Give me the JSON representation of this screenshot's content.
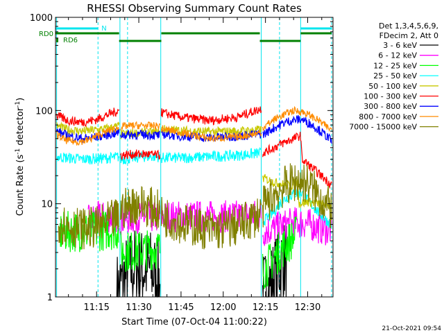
{
  "chart_data": {
    "type": "line",
    "title": "RHESSI Observing Summary Count Rates",
    "xlabel": "Start Time (07-Oct-04 11:00:22)",
    "ylabel_main": "Count Rate (s",
    "ylabel_sup1": "-1",
    "ylabel_mid": " detector",
    "ylabel_sup2": "-1",
    "ylabel_end": ")",
    "y_scale": "log",
    "ylim": [
      1,
      1000
    ],
    "xlim_minutes": [
      0.4,
      99
    ],
    "x_tick_labels": [
      {
        "t": 15,
        "label": "11:15"
      },
      {
        "t": 30,
        "label": "11:30"
      },
      {
        "t": 45,
        "label": "11:45"
      },
      {
        "t": 60,
        "label": "12:00"
      },
      {
        "t": 75,
        "label": "12:15"
      },
      {
        "t": 90,
        "label": "12:30"
      }
    ],
    "y_tick_labels": [
      {
        "v": 1,
        "label": "1"
      },
      {
        "v": 10,
        "label": "10"
      },
      {
        "v": 100,
        "label": "100"
      },
      {
        "v": 1000,
        "label": "1000"
      }
    ],
    "legend_header": [
      "Det 1,3,4,5,6,9,",
      "FDecim 2, Att 0"
    ],
    "legend_placement": "right",
    "timestamp": "21-Oct-2021 09:54",
    "flags": [
      {
        "label": "N",
        "color": "#00e5ee",
        "segments": [
          [
            0.5,
            15.5
          ],
          [
            87.5,
            98.5
          ]
        ]
      },
      {
        "label": "RD0",
        "color": "#008000",
        "segments": [
          [
            0.5,
            23
          ],
          [
            38,
            73
          ],
          [
            87.5,
            98.5
          ]
        ]
      },
      {
        "label": "RD6",
        "color": "#008000",
        "segments": [
          [
            23,
            38
          ],
          [
            73,
            87.5
          ]
        ]
      }
    ],
    "vlines": {
      "solid": [
        0.8,
        23.3,
        37.8,
        73.5,
        87.5
      ],
      "dashed": [
        15.5,
        26,
        80,
        98.5
      ]
    },
    "series": [
      {
        "name": "3 - 6 keV",
        "color": "#000000",
        "segments": [
          [
            [
              22.2,
              1.1
            ],
            [
              25,
              1.6
            ],
            [
              28,
              2.1
            ],
            [
              31,
              2.0
            ],
            [
              34,
              2.0
            ],
            [
              37.5,
              1.5
            ]
          ],
          [
            [
              74,
              1.1
            ],
            [
              76.5,
              1.3
            ],
            [
              78.5,
              1.7
            ],
            [
              80.5,
              2.3
            ],
            [
              82.5,
              2.6
            ]
          ]
        ]
      },
      {
        "name": "6 - 12 keV",
        "color": "#ff00ff",
        "segments": [
          [
            [
              12,
              6.5
            ],
            [
              15,
              7.1
            ],
            [
              20,
              7.2
            ],
            [
              23,
              7.3
            ]
          ],
          [
            [
              23.2,
              6.8
            ],
            [
              30,
              7.2
            ],
            [
              37.5,
              7.1
            ]
          ],
          [
            [
              38,
              7.3
            ],
            [
              50,
              7.3
            ],
            [
              60,
              7.3
            ],
            [
              70,
              7.5
            ],
            [
              73.5,
              7.6
            ]
          ],
          [
            [
              74,
              5.0
            ],
            [
              79,
              5.5
            ],
            [
              83,
              6.0
            ],
            [
              86,
              6.3
            ],
            [
              89,
              6.2
            ],
            [
              92,
              5.8
            ],
            [
              95,
              5.4
            ],
            [
              98.5,
              5.2
            ]
          ]
        ]
      },
      {
        "name": "12 - 25 keV",
        "color": "#00ff00",
        "segments": [
          [
            [
              2,
              4.9
            ],
            [
              5,
              5.0
            ],
            [
              10,
              5.1
            ],
            [
              15,
              5.1
            ],
            [
              20,
              5.3
            ],
            [
              22.8,
              5.3
            ]
          ],
          [
            [
              23.5,
              3.1
            ],
            [
              28,
              3.1
            ],
            [
              33,
              3.2
            ],
            [
              37.5,
              3.3
            ]
          ],
          [
            [
              74,
              1.9
            ],
            [
              77,
              2.4
            ],
            [
              80,
              3.1
            ],
            [
              83,
              3.8
            ],
            [
              86,
              4.6
            ]
          ]
        ]
      },
      {
        "name": "25 - 50 keV",
        "color": "#00ffff",
        "segments": [
          [
            [
              0.8,
              32
            ],
            [
              5,
              31
            ],
            [
              10,
              30
            ],
            [
              15,
              30.5
            ],
            [
              20,
              31
            ],
            [
              23,
              32
            ]
          ],
          [
            [
              23.5,
              30
            ],
            [
              28,
              31
            ],
            [
              32,
              32
            ],
            [
              37.5,
              32
            ]
          ],
          [
            [
              38,
              31
            ],
            [
              45,
              31
            ],
            [
              55,
              32
            ],
            [
              65,
              33
            ],
            [
              73.5,
              35
            ]
          ],
          [
            [
              74,
              6.5
            ],
            [
              77,
              7.5
            ],
            [
              80,
              10.0
            ],
            [
              83,
              12.0
            ],
            [
              86,
              13.0
            ],
            [
              88,
              13.0
            ],
            [
              91,
              10.0
            ],
            [
              94,
              8.0
            ],
            [
              97,
              6.5
            ],
            [
              98.5,
              6.0
            ]
          ]
        ]
      },
      {
        "name": "50 - 100 keV",
        "color": "#c8c800",
        "segments": [
          [
            [
              0.8,
              68
            ],
            [
              5,
              62
            ],
            [
              10,
              60
            ],
            [
              15,
              62
            ],
            [
              20,
              65
            ],
            [
              23,
              68
            ]
          ],
          [
            [
              23.5,
              55
            ],
            [
              28,
              57
            ],
            [
              32,
              58
            ],
            [
              37.5,
              58
            ]
          ],
          [
            [
              38,
              63
            ],
            [
              45,
              61
            ],
            [
              55,
              59
            ],
            [
              65,
              60
            ],
            [
              73.5,
              62
            ]
          ],
          [
            [
              74,
              19
            ],
            [
              78,
              17
            ],
            [
              82,
              16
            ],
            [
              84,
              15.5
            ],
            [
              86.5,
              17
            ],
            [
              87,
              10
            ],
            [
              90,
              10.5
            ],
            [
              94,
              10
            ],
            [
              98.5,
              9.5
            ]
          ]
        ]
      },
      {
        "name": "100 - 300 keV",
        "color": "#ff0000",
        "segments": [
          [
            [
              0.8,
              88
            ],
            [
              5,
              78
            ],
            [
              10,
              75
            ],
            [
              15,
              80
            ],
            [
              20,
              93
            ],
            [
              23,
              100
            ]
          ],
          [
            [
              23.5,
              33
            ],
            [
              28,
              34
            ],
            [
              33,
              34
            ],
            [
              37.5,
              33
            ]
          ],
          [
            [
              38,
              95
            ],
            [
              45,
              85
            ],
            [
              55,
              78
            ],
            [
              65,
              85
            ],
            [
              73.5,
              105
            ]
          ],
          [
            [
              74,
              35
            ],
            [
              78,
              40
            ],
            [
              82,
              46
            ],
            [
              85,
              50
            ],
            [
              87.5,
              54
            ],
            [
              88,
              30
            ],
            [
              91,
              25
            ],
            [
              94,
              21
            ],
            [
              97,
              17.5
            ],
            [
              98.5,
              16
            ]
          ]
        ]
      },
      {
        "name": "300 - 800 keV",
        "color": "#0000ff",
        "segments": [
          [
            [
              0.8,
              60
            ],
            [
              5,
              53
            ],
            [
              10,
              50
            ],
            [
              15,
              52
            ],
            [
              20,
              56
            ],
            [
              23,
              58
            ]
          ],
          [
            [
              23.5,
              55
            ],
            [
              28,
              55
            ],
            [
              33,
              55
            ],
            [
              37.5,
              54
            ]
          ],
          [
            [
              38,
              56
            ],
            [
              45,
              53
            ],
            [
              55,
              51
            ],
            [
              65,
              53
            ],
            [
              73.5,
              56
            ]
          ],
          [
            [
              74,
              55
            ],
            [
              78,
              65
            ],
            [
              82,
              75
            ],
            [
              86,
              80
            ],
            [
              88,
              80
            ],
            [
              91,
              72
            ],
            [
              94,
              62
            ],
            [
              97,
              52
            ],
            [
              98.5,
              47
            ]
          ]
        ]
      },
      {
        "name": "800 - 7000 keV",
        "color": "#ff8c00",
        "segments": [
          [
            [
              0.8,
              55
            ],
            [
              4,
              48
            ],
            [
              8,
              46
            ],
            [
              12,
              48
            ],
            [
              16,
              55
            ],
            [
              20,
              62
            ],
            [
              23,
              65
            ]
          ],
          [
            [
              23.5,
              67
            ],
            [
              28,
              69
            ],
            [
              33,
              69
            ],
            [
              37.5,
              68
            ]
          ],
          [
            [
              38,
              64
            ],
            [
              45,
              58
            ],
            [
              55,
              50
            ],
            [
              65,
              52
            ],
            [
              73.5,
              58
            ]
          ],
          [
            [
              74,
              65
            ],
            [
              78,
              80
            ],
            [
              82,
              92
            ],
            [
              85,
              100
            ],
            [
              88,
              97
            ],
            [
              91,
              88
            ],
            [
              94,
              78
            ],
            [
              97,
              66
            ],
            [
              98.5,
              62
            ]
          ]
        ]
      },
      {
        "name": "7000 - 15000 keV",
        "color": "#808000",
        "segments": [
          [
            [
              1.5,
              6.3
            ],
            [
              5,
              5.8
            ],
            [
              10,
              5.4
            ],
            [
              15,
              5.6
            ],
            [
              20,
              6.5
            ],
            [
              23,
              7.2
            ]
          ],
          [
            [
              23.5,
              8.5
            ],
            [
              27,
              9.5
            ],
            [
              30,
              10.0
            ],
            [
              34,
              9.2
            ],
            [
              37.5,
              8.3
            ]
          ],
          [
            [
              38,
              7.5
            ],
            [
              45,
              6.2
            ],
            [
              50,
              5.7
            ],
            [
              55,
              5.2
            ],
            [
              60,
              5.3
            ],
            [
              65,
              5.8
            ],
            [
              70,
              6.8
            ],
            [
              73.5,
              8.0
            ]
          ],
          [
            [
              74,
              9.0
            ],
            [
              78,
              12.5
            ],
            [
              82,
              15.5
            ],
            [
              85,
              17.0
            ],
            [
              88,
              17.5
            ],
            [
              91,
              15.5
            ],
            [
              94,
              12.0
            ],
            [
              97,
              9.5
            ],
            [
              98.5,
              8.5
            ]
          ]
        ]
      }
    ]
  }
}
